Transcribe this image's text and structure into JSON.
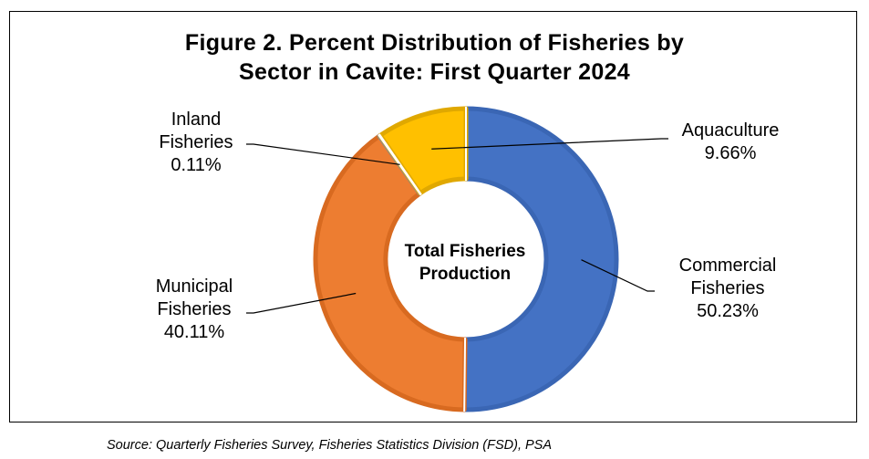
{
  "chart_data": {
    "type": "pie",
    "subtype": "donut",
    "title_lines": [
      "Figure 2. Percent Distribution of Fisheries by",
      "Sector in Cavite: First Quarter 2024"
    ],
    "center_label_lines": [
      "Total Fisheries",
      "Production"
    ],
    "slices": [
      {
        "label_lines": [
          "Commercial",
          "Fisheries"
        ],
        "value": 50.23,
        "value_text": "50.23%",
        "color": "#4472C4",
        "edge": "#3A66B4"
      },
      {
        "label_lines": [
          "Municipal",
          "Fisheries"
        ],
        "value": 40.11,
        "value_text": "40.11%",
        "color": "#ED7D31",
        "edge": "#D86A20"
      },
      {
        "label_lines": [
          "Inland",
          "Fisheries"
        ],
        "value": 0.11,
        "value_text": "0.11%",
        "color": "#A5A5A5",
        "edge": "#8C8C8C"
      },
      {
        "label_lines": [
          "Aquaculture"
        ],
        "value": 9.66,
        "value_text": "9.66%",
        "color": "#FFC000",
        "edge": "#E0A800"
      }
    ],
    "start": "12 o'clock",
    "direction": "clockwise",
    "legend": "none"
  },
  "source": "Source: Quarterly Fisheries Survey, Fisheries Statistics Division (FSD), PSA"
}
